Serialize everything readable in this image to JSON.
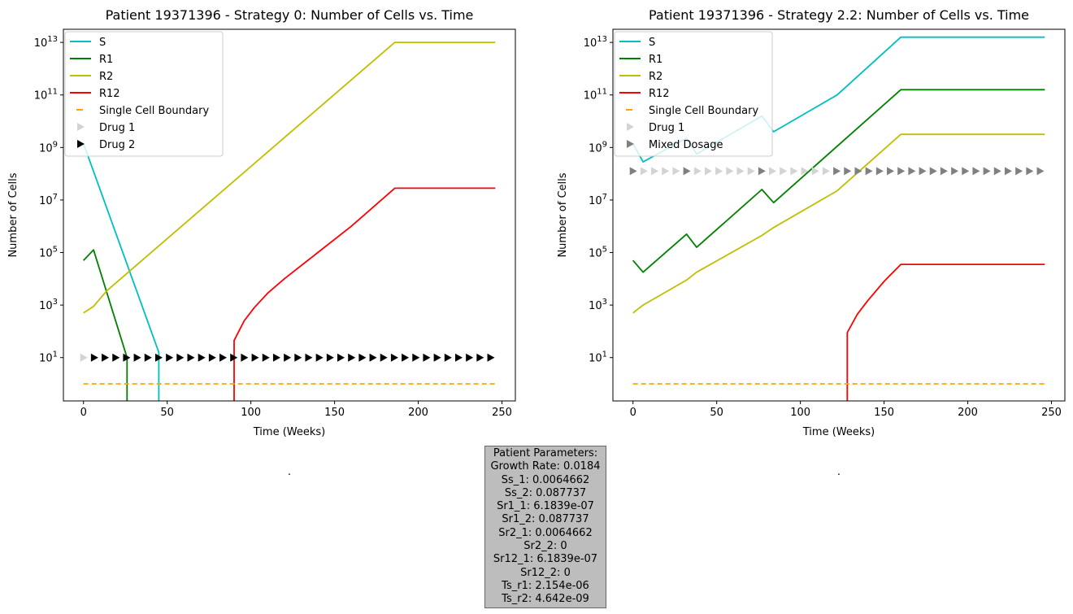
{
  "chart_data": [
    {
      "type": "line",
      "title": "Patient 19371396 - Strategy 0: Number of Cells vs. Time",
      "xlabel": "Time (Weeks)",
      "ylabel": "Number of Cells",
      "yscale": "log",
      "xlim": [
        -12,
        258
      ],
      "ylim_log10": [
        -0.65,
        13.5
      ],
      "xticks": [
        "0",
        "50",
        "100",
        "150",
        "200",
        "250"
      ],
      "yticks": [
        "10^1",
        "10^3",
        "10^5",
        "10^7",
        "10^9",
        "10^11",
        "10^13"
      ],
      "below_text": ".",
      "legend_position": "upper-left",
      "series": [
        {
          "name": "S",
          "color": "#00bfbf",
          "points": [
            [
              0,
              9.15
            ],
            [
              45,
              1.2
            ],
            [
              45,
              -0.65
            ]
          ]
        },
        {
          "name": "R1",
          "color": "#008000",
          "points": [
            [
              0,
              4.7
            ],
            [
              6,
              5.1
            ],
            [
              26,
              1.0
            ],
            [
              26,
              -0.65
            ]
          ]
        },
        {
          "name": "R2",
          "color": "#bfbf00",
          "points": [
            [
              0,
              2.7
            ],
            [
              6,
              2.95
            ],
            [
              14,
              3.55
            ],
            [
              186,
              13.0
            ],
            [
              246,
              13.0
            ]
          ]
        },
        {
          "name": "R12",
          "color": "#ff0000",
          "points": [
            [
              90,
              -0.65
            ],
            [
              90,
              1.65
            ],
            [
              96,
              2.4
            ],
            [
              102,
              2.9
            ],
            [
              110,
              3.45
            ],
            [
              120,
              4.0
            ],
            [
              140,
              5.0
            ],
            [
              160,
              6.0
            ],
            [
              186,
              7.45
            ],
            [
              246,
              7.45
            ]
          ]
        },
        {
          "name": "Single Cell Boundary",
          "color": "#ffa500",
          "style": "dashed",
          "y": 0
        }
      ],
      "dose_row": {
        "y_log10": 1.0,
        "x_start": 0,
        "x_step": 6.4,
        "count": 39,
        "colors": [
          "#d3d3d3",
          "#000000",
          "#000000",
          "#000000",
          "#000000",
          "#000000",
          "#000000",
          "#000000",
          "#000000",
          "#000000",
          "#000000",
          "#000000",
          "#000000",
          "#000000",
          "#000000",
          "#000000",
          "#000000",
          "#000000",
          "#000000",
          "#000000",
          "#000000",
          "#000000",
          "#000000",
          "#000000",
          "#000000",
          "#000000",
          "#000000",
          "#000000",
          "#000000",
          "#000000",
          "#000000",
          "#000000",
          "#000000",
          "#000000",
          "#000000",
          "#000000",
          "#000000",
          "#000000",
          "#000000"
        ]
      },
      "legend": [
        {
          "label": "S",
          "kind": "line",
          "color": "#00bfbf"
        },
        {
          "label": "R1",
          "kind": "line",
          "color": "#008000"
        },
        {
          "label": "R2",
          "kind": "line",
          "color": "#bfbf00"
        },
        {
          "label": "R12",
          "kind": "line",
          "color": "#ff0000"
        },
        {
          "label": "Single Cell Boundary",
          "kind": "dash",
          "color": "#ffa500"
        },
        {
          "label": "Drug 1",
          "kind": "tri",
          "color": "#d3d3d3"
        },
        {
          "label": "Drug 2",
          "kind": "tri",
          "color": "#000000"
        }
      ]
    },
    {
      "type": "line",
      "title": "Patient 19371396 - Strategy 2.2: Number of Cells vs. Time",
      "xlabel": "Time (Weeks)",
      "ylabel": "Number of Cells",
      "yscale": "log",
      "xlim": [
        -12,
        258
      ],
      "ylim_log10": [
        -0.65,
        13.5
      ],
      "xticks": [
        "0",
        "50",
        "100",
        "150",
        "200",
        "250"
      ],
      "yticks": [
        "10^1",
        "10^3",
        "10^5",
        "10^7",
        "10^9",
        "10^11",
        "10^13"
      ],
      "below_text": ".",
      "legend_position": "upper-left",
      "series": [
        {
          "name": "S",
          "color": "#00bfbf",
          "points": [
            [
              0,
              9.15
            ],
            [
              6,
              8.45
            ],
            [
              32,
              9.35
            ],
            [
              38,
              8.75
            ],
            [
              77,
              10.2
            ],
            [
              84,
              9.6
            ],
            [
              122,
              11.0
            ],
            [
              160,
              13.2
            ],
            [
              246,
              13.2
            ]
          ]
        },
        {
          "name": "R1",
          "color": "#008000",
          "points": [
            [
              0,
              4.7
            ],
            [
              6,
              4.25
            ],
            [
              32,
              5.7
            ],
            [
              38,
              5.2
            ],
            [
              77,
              7.4
            ],
            [
              84,
              6.9
            ],
            [
              160,
              11.2
            ],
            [
              246,
              11.2
            ]
          ]
        },
        {
          "name": "R2",
          "color": "#bfbf00",
          "points": [
            [
              0,
              2.7
            ],
            [
              6,
              3.0
            ],
            [
              32,
              3.95
            ],
            [
              38,
              4.25
            ],
            [
              77,
              5.65
            ],
            [
              84,
              5.95
            ],
            [
              122,
              7.35
            ],
            [
              160,
              9.5
            ],
            [
              246,
              9.5
            ]
          ]
        },
        {
          "name": "R12",
          "color": "#ff0000",
          "points": [
            [
              128,
              -0.65
            ],
            [
              128,
              1.95
            ],
            [
              134,
              2.65
            ],
            [
              140,
              3.15
            ],
            [
              150,
              3.9
            ],
            [
              160,
              4.55
            ],
            [
              246,
              4.55
            ]
          ]
        },
        {
          "name": "Single Cell Boundary",
          "color": "#ffa500",
          "style": "dashed",
          "y": 0
        }
      ],
      "dose_row": {
        "y_log10": 8.1,
        "x_start": 0,
        "x_step": 6.4,
        "count": 39,
        "colors": [
          "#808080",
          "#d3d3d3",
          "#d3d3d3",
          "#d3d3d3",
          "#d3d3d3",
          "#808080",
          "#d3d3d3",
          "#d3d3d3",
          "#d3d3d3",
          "#d3d3d3",
          "#d3d3d3",
          "#d3d3d3",
          "#808080",
          "#d3d3d3",
          "#d3d3d3",
          "#d3d3d3",
          "#d3d3d3",
          "#d3d3d3",
          "#d3d3d3",
          "#808080",
          "#808080",
          "#808080",
          "#808080",
          "#808080",
          "#808080",
          "#808080",
          "#808080",
          "#808080",
          "#808080",
          "#808080",
          "#808080",
          "#808080",
          "#808080",
          "#808080",
          "#808080",
          "#808080",
          "#808080",
          "#808080",
          "#808080"
        ]
      },
      "legend": [
        {
          "label": "S",
          "kind": "line",
          "color": "#00bfbf"
        },
        {
          "label": "R1",
          "kind": "line",
          "color": "#008000"
        },
        {
          "label": "R2",
          "kind": "line",
          "color": "#bfbf00"
        },
        {
          "label": "R12",
          "kind": "line",
          "color": "#ff0000"
        },
        {
          "label": "Single Cell Boundary",
          "kind": "dash",
          "color": "#ffa500"
        },
        {
          "label": "Drug 1",
          "kind": "tri",
          "color": "#d3d3d3"
        },
        {
          "label": "Mixed Dosage",
          "kind": "tri",
          "color": "#808080"
        }
      ]
    }
  ],
  "parameters": [
    "Patient Parameters:",
    "Growth Rate: 0.0184",
    "Ss_1: 0.0064662",
    "Ss_2: 0.087737",
    "Sr1_1: 6.1839e-07",
    "Sr1_2: 0.087737",
    "Sr2_1: 0.0064662",
    "Sr2_2: 0",
    "Sr12_1: 6.1839e-07",
    "Sr12_2: 0",
    "Ts_r1: 2.154e-06",
    "Ts_r2: 4.642e-09"
  ]
}
